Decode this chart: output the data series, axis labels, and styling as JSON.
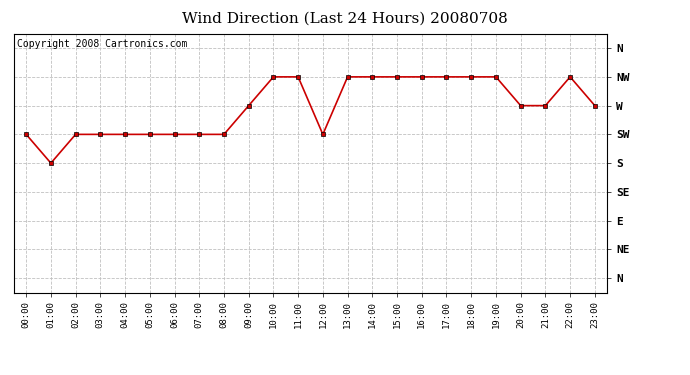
{
  "title": "Wind Direction (Last 24 Hours) 20080708",
  "copyright": "Copyright 2008 Cartronics.com",
  "hours": [
    0,
    1,
    2,
    3,
    4,
    5,
    6,
    7,
    8,
    9,
    10,
    11,
    12,
    13,
    14,
    15,
    16,
    17,
    18,
    19,
    20,
    21,
    22,
    23
  ],
  "x_labels": [
    "00:00",
    "01:00",
    "02:00",
    "03:00",
    "04:00",
    "05:00",
    "06:00",
    "07:00",
    "08:00",
    "09:00",
    "10:00",
    "11:00",
    "12:00",
    "13:00",
    "14:00",
    "15:00",
    "16:00",
    "17:00",
    "18:00",
    "19:00",
    "20:00",
    "21:00",
    "22:00",
    "23:00"
  ],
  "wind_values": [
    5,
    4,
    5,
    5,
    5,
    5,
    5,
    5,
    5,
    6,
    7,
    7,
    5,
    7,
    7,
    7,
    7,
    7,
    7,
    7,
    6,
    6,
    7,
    6
  ],
  "y_ticks": [
    0,
    1,
    2,
    3,
    4,
    5,
    6,
    7,
    8
  ],
  "y_labels": [
    "N",
    "NE",
    "E",
    "SE",
    "S",
    "SW",
    "W",
    "NW",
    "N"
  ],
  "ylim": [
    -0.5,
    8.5
  ],
  "line_color": "#cc0000",
  "marker": "s",
  "marker_size": 3,
  "bg_color": "#ffffff",
  "plot_bg_color": "#ffffff",
  "grid_color": "#c0c0c0",
  "title_fontsize": 11,
  "copyright_fontsize": 7
}
